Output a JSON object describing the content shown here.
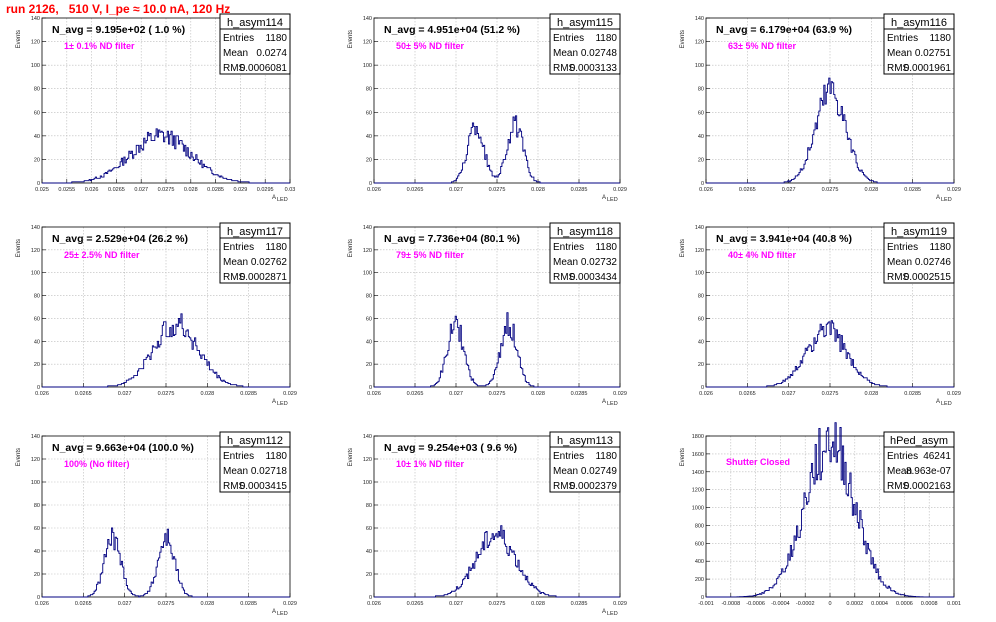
{
  "title": "run 2126,   510 V, I_pe ≈ 10.0 nA, 120 Hz",
  "stat_labels": {
    "entries": "Entries",
    "mean": "Mean",
    "rms": "RMS"
  },
  "chart_data": [
    {
      "type": "histogram",
      "name": "h_asym114",
      "navg": "N_avg = 9.195e+02 ( 1.0 %)",
      "filter": "1± 0.1% ND filter",
      "ylabel": "Events",
      "xlabel": "A",
      "xlabel_sub": "LED",
      "stats": {
        "entries": "1180",
        "mean": "0.0274",
        "rms": "0.0006081"
      },
      "xlim": [
        0.025,
        0.03
      ],
      "ylim": [
        0,
        140
      ],
      "xticks": [
        "0.025",
        "0.0255",
        "0.026",
        "0.0265",
        "0.027",
        "0.0275",
        "0.028",
        "0.0285",
        "0.029",
        "0.0295",
        "0.03"
      ],
      "yticks": [
        "0",
        "20",
        "40",
        "60",
        "80",
        "100",
        "120",
        "140"
      ],
      "grid": true,
      "mean": 0.0274,
      "sigma": 0.00061,
      "shape": "gauss",
      "ymax": 40
    },
    {
      "type": "histogram",
      "name": "h_asym115",
      "navg": "N_avg = 4.951e+04 (51.2 %)",
      "filter": "50± 5% ND filter",
      "ylabel": "Events",
      "xlabel": "A",
      "xlabel_sub": "LED",
      "stats": {
        "entries": "1180",
        "mean": "0.02748",
        "rms": "0.0003133"
      },
      "xlim": [
        0.026,
        0.029
      ],
      "ylim": [
        0,
        140
      ],
      "xticks": [
        "0.026",
        "0.0265",
        "0.027",
        "0.0275",
        "0.028",
        "0.0285",
        "0.029"
      ],
      "yticks": [
        "0",
        "20",
        "40",
        "60",
        "80",
        "100",
        "120",
        "140"
      ],
      "grid": true,
      "mean": 0.02748,
      "sigma": 0.0001,
      "peak_sep": 0.00048,
      "shape": "double",
      "ymax": 48
    },
    {
      "type": "histogram",
      "name": "h_asym116",
      "navg": "N_avg = 6.179e+04 (63.9 %)",
      "filter": "63± 5% ND filter",
      "ylabel": "Events",
      "xlabel": "A",
      "xlabel_sub": "LED",
      "stats": {
        "entries": "1180",
        "mean": "0.02751",
        "rms": "0.0001961"
      },
      "xlim": [
        0.026,
        0.029
      ],
      "ylim": [
        0,
        140
      ],
      "xticks": [
        "0.026",
        "0.0265",
        "0.027",
        "0.0275",
        "0.028",
        "0.0285",
        "0.029"
      ],
      "yticks": [
        "0",
        "20",
        "40",
        "60",
        "80",
        "100",
        "120",
        "140"
      ],
      "grid": true,
      "mean": 0.02751,
      "sigma": 0.00018,
      "shape": "gauss",
      "ymax": 80
    },
    {
      "type": "histogram",
      "name": "h_asym117",
      "navg": "N_avg = 2.529e+04 (26.2 %)",
      "filter": "25± 2.5% ND filter",
      "ylabel": "Events",
      "xlabel": "A",
      "xlabel_sub": "LED",
      "stats": {
        "entries": "1180",
        "mean": "0.02762",
        "rms": "0.0002871"
      },
      "xlim": [
        0.026,
        0.029
      ],
      "ylim": [
        0,
        140
      ],
      "xticks": [
        "0.026",
        "0.0265",
        "0.027",
        "0.0275",
        "0.028",
        "0.0285",
        "0.029"
      ],
      "yticks": [
        "0",
        "20",
        "40",
        "60",
        "80",
        "100",
        "120",
        "140"
      ],
      "grid": true,
      "mean": 0.02762,
      "sigma": 0.00027,
      "shape": "gauss",
      "ymax": 55
    },
    {
      "type": "histogram",
      "name": "h_asym118",
      "navg": "N_avg = 7.736e+04 (80.1 %)",
      "filter": "79± 5% ND filter",
      "ylabel": "Events",
      "xlabel": "A",
      "xlabel_sub": "LED",
      "stats": {
        "entries": "1180",
        "mean": "0.02732",
        "rms": "0.0003434"
      },
      "xlim": [
        0.026,
        0.029
      ],
      "ylim": [
        0,
        140
      ],
      "xticks": [
        "0.026",
        "0.0265",
        "0.027",
        "0.0275",
        "0.028",
        "0.0285",
        "0.029"
      ],
      "yticks": [
        "0",
        "20",
        "40",
        "60",
        "80",
        "100",
        "120",
        "140"
      ],
      "grid": true,
      "mean": 0.02732,
      "sigma": 0.0001,
      "peak_sep": 0.00065,
      "shape": "double",
      "ymax": 55
    },
    {
      "type": "histogram",
      "name": "h_asym119",
      "navg": "N_avg = 3.941e+04 (40.8 %)",
      "filter": "40± 4% ND filter",
      "ylabel": "Events",
      "xlabel": "A",
      "xlabel_sub": "LED",
      "stats": {
        "entries": "1180",
        "mean": "0.02746",
        "rms": "0.0002515"
      },
      "xlim": [
        0.026,
        0.029
      ],
      "ylim": [
        0,
        140
      ],
      "xticks": [
        "0.026",
        "0.0265",
        "0.027",
        "0.0275",
        "0.028",
        "0.0285",
        "0.029"
      ],
      "yticks": [
        "0",
        "20",
        "40",
        "60",
        "80",
        "100",
        "120",
        "140"
      ],
      "grid": true,
      "mean": 0.02746,
      "sigma": 0.00024,
      "shape": "gauss",
      "ymax": 50
    },
    {
      "type": "histogram",
      "name": "h_asym112",
      "navg": "N_avg = 9.663e+04 (100.0 %)",
      "filter": "100% (No filter)",
      "ylabel": "Events",
      "xlabel": "A",
      "xlabel_sub": "LED",
      "stats": {
        "entries": "1180",
        "mean": "0.02718",
        "rms": "0.0003415"
      },
      "xlim": [
        0.026,
        0.029
      ],
      "ylim": [
        0,
        140
      ],
      "xticks": [
        "0.026",
        "0.0265",
        "0.027",
        "0.0275",
        "0.028",
        "0.0285",
        "0.029"
      ],
      "yticks": [
        "0",
        "20",
        "40",
        "60",
        "80",
        "100",
        "120",
        "140"
      ],
      "grid": true,
      "mean": 0.02718,
      "sigma": 0.0001,
      "peak_sep": 0.00065,
      "shape": "double",
      "ymax": 52
    },
    {
      "type": "histogram",
      "name": "h_asym113",
      "navg": "N_avg = 9.254e+03 ( 9.6 %)",
      "filter": "10± 1% ND filter",
      "ylabel": "Events",
      "xlabel": "A",
      "xlabel_sub": "LED",
      "stats": {
        "entries": "1180",
        "mean": "0.02749",
        "rms": "0.0002379"
      },
      "xlim": [
        0.026,
        0.029
      ],
      "ylim": [
        0,
        140
      ],
      "xticks": [
        "0.026",
        "0.0265",
        "0.027",
        "0.0275",
        "0.028",
        "0.0285",
        "0.029"
      ],
      "yticks": [
        "0",
        "20",
        "40",
        "60",
        "80",
        "100",
        "120",
        "140"
      ],
      "grid": true,
      "mean": 0.02749,
      "sigma": 0.00024,
      "shape": "gauss",
      "ymax": 55
    },
    {
      "type": "histogram",
      "name": "hPed_asym",
      "navg": "",
      "filter": "Shutter Closed",
      "ylabel": "Events",
      "xlabel": "",
      "xlabel_sub": "",
      "stats": {
        "entries": "46241",
        "mean": "8.963e-07",
        "rms": "0.0002163"
      },
      "xlim": [
        -0.001,
        0.001
      ],
      "ylim": [
        0,
        1800
      ],
      "xticks": [
        "-0.001",
        "-0.0008",
        "-0.0006",
        "-0.0004",
        "-0.0002",
        "0",
        "0.0002",
        "0.0004",
        "0.0006",
        "0.0008",
        "0.001"
      ],
      "yticks": [
        "0",
        "200",
        "400",
        "600",
        "800",
        "1000",
        "1200",
        "1400",
        "1600",
        "1800"
      ],
      "grid": true,
      "mean": 0.0,
      "sigma": 0.0002,
      "shape": "gauss",
      "ymax": 1730
    }
  ],
  "colors": {
    "line": "#000080",
    "grid": "#bbbbbb",
    "filter": "#ff00ff",
    "title": "#ff0000"
  }
}
